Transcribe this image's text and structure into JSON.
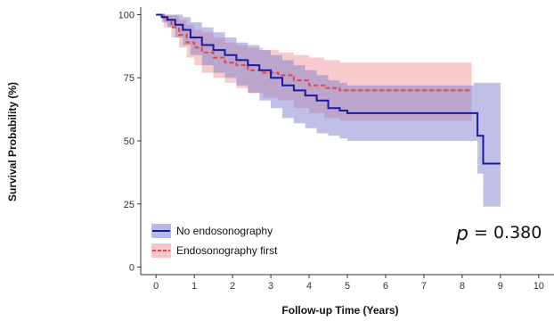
{
  "chart_data": {
    "type": "line",
    "subtype": "kaplan-meier survival curve with confidence bands",
    "xlabel": "Follow-up Time (Years)",
    "ylabel": "Survival Probability (%)",
    "xlim": [
      -0.4,
      10.4
    ],
    "ylim": [
      -3,
      103
    ],
    "xticks": [
      0,
      1,
      2,
      3,
      4,
      5,
      6,
      7,
      8,
      9,
      10
    ],
    "yticks": [
      0,
      25,
      50,
      75,
      100
    ],
    "grid": false,
    "legend_position": "bottom-left",
    "annotation": {
      "p_symbol": "p",
      "p_text": "= 0.380"
    },
    "series": [
      {
        "name": "No endosonography",
        "color": "#1a1a9e",
        "band_color": "#8080d0",
        "line_style": "solid",
        "x": [
          0,
          0.15,
          0.3,
          0.5,
          0.7,
          0.9,
          1.2,
          1.5,
          1.8,
          2.1,
          2.4,
          2.7,
          3.0,
          3.3,
          3.6,
          3.9,
          4.2,
          4.5,
          4.8,
          5.0,
          6.0,
          7.0,
          8.0,
          8.3,
          8.4,
          8.55,
          9.0
        ],
        "y": [
          100,
          99,
          98,
          96,
          94,
          91,
          88,
          86,
          84,
          82,
          80,
          78,
          75,
          72,
          70,
          68,
          66,
          63,
          62,
          61,
          61,
          61,
          61,
          61,
          52,
          41,
          41
        ],
        "lower": [
          100,
          97,
          95,
          91,
          88,
          84,
          80,
          77,
          75,
          72,
          69,
          66,
          63,
          59,
          57,
          55,
          53,
          52,
          51,
          50,
          50,
          50,
          50,
          50,
          37,
          24,
          24
        ],
        "upper": [
          100,
          100,
          100,
          100,
          99,
          97,
          95,
          93,
          91,
          89,
          88,
          86,
          84,
          82,
          80,
          78,
          76,
          74,
          73,
          72,
          72,
          72,
          72,
          73,
          73,
          73,
          73
        ]
      },
      {
        "name": "Endosonography first",
        "color": "#e04848",
        "band_color": "#f0a0a0",
        "line_style": "dashed",
        "x": [
          0,
          0.2,
          0.4,
          0.6,
          0.8,
          1.0,
          1.2,
          1.5,
          1.8,
          2.1,
          2.4,
          2.8,
          3.2,
          3.6,
          4.0,
          4.4,
          4.8,
          5.0,
          6.0,
          7.0,
          8.0,
          8.25
        ],
        "y": [
          100,
          98,
          95,
          92,
          89,
          87,
          85,
          83,
          81,
          80,
          78,
          77,
          76,
          74,
          72,
          71,
          70,
          70,
          70,
          70,
          70,
          70
        ],
        "lower": [
          100,
          95,
          91,
          87,
          83,
          80,
          77,
          75,
          73,
          71,
          69,
          67,
          66,
          63,
          61,
          59,
          58,
          58,
          58,
          58,
          58,
          58
        ],
        "upper": [
          100,
          100,
          100,
          98,
          96,
          94,
          93,
          91,
          89,
          88,
          87,
          86,
          85,
          84,
          83,
          82,
          81,
          81,
          81,
          81,
          81,
          81
        ]
      }
    ]
  }
}
